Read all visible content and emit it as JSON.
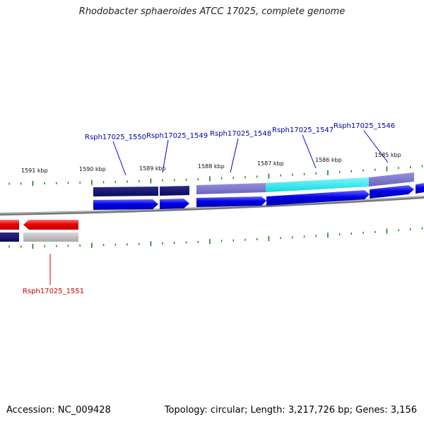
{
  "title": "Rhodobacter sphaeroides ATCC 17025, complete genome",
  "footer": {
    "accession_label": "Accession:",
    "accession": "NC_009428",
    "topology_label": "Topology:",
    "topology": "circular",
    "length_label": "Length:",
    "length": "3,217,726 bp",
    "genes_label": "Genes:",
    "genes": "3,156"
  },
  "colors": {
    "forward_gene": "#0000e0",
    "reverse_gene": "#e00000",
    "forward_cds_dark": "#101070",
    "forward_cds_light": "#7a74c8",
    "highlight_cds": "#22e8ee",
    "grey_track": "#bbbbbb",
    "tick": "#1a7a1a",
    "backbone": "#8a8a8a",
    "label_forward": "#0000aa",
    "label_reverse": "#cc0000"
  },
  "scale_labels": [
    "1591 kbp",
    "1590 kbp",
    "1589 kbp",
    "1588 kbp",
    "1587 kbp",
    "1586 kbp",
    "1585 kbp"
  ],
  "gene_labels": [
    {
      "text": "Rsph17025_1550",
      "strand": "forward"
    },
    {
      "text": "Rsph17025_1549",
      "strand": "forward"
    },
    {
      "text": "Rsph17025_1548",
      "strand": "forward"
    },
    {
      "text": "Rsph17025_1547",
      "strand": "forward"
    },
    {
      "text": "Rsph17025_1546",
      "strand": "forward"
    },
    {
      "text": "Rsph17025_1551",
      "strand": "reverse"
    }
  ]
}
